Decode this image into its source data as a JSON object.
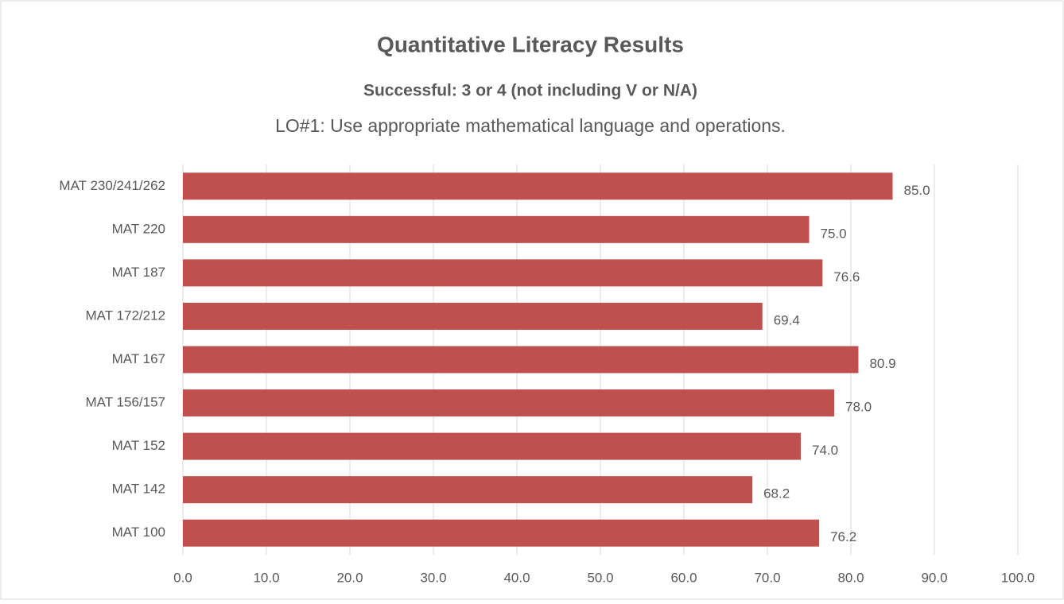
{
  "chart_data": {
    "type": "bar",
    "orientation": "horizontal",
    "title": "Quantitative Literacy Results",
    "subtitle": "Successful: 3 or 4 (not including V or N/A)",
    "caption": "LO#1:  Use appropriate mathematical language and operations.",
    "categories": [
      "MAT 230/241/262",
      "MAT 220",
      "MAT 187",
      "MAT 172/212",
      "MAT 167",
      "MAT 156/157",
      "MAT 152",
      "MAT 142",
      "MAT 100"
    ],
    "values": [
      85.0,
      75.0,
      76.6,
      69.4,
      80.9,
      78.0,
      74.0,
      68.2,
      76.2
    ],
    "value_labels": [
      "85.0",
      "75.0",
      "76.6",
      "69.4",
      "80.9",
      "78.0",
      "74.0",
      "68.2",
      "76.2"
    ],
    "color": "#c0504d",
    "xlim": [
      0,
      100
    ],
    "xticks": [
      {
        "value": 0,
        "label": "0.0"
      },
      {
        "value": 10,
        "label": "10.0"
      },
      {
        "value": 20,
        "label": "20.0"
      },
      {
        "value": 30,
        "label": "30.0"
      },
      {
        "value": 40,
        "label": "40.0"
      },
      {
        "value": 50,
        "label": "50.0"
      },
      {
        "value": 60,
        "label": "60.0"
      },
      {
        "value": 70,
        "label": "70.0"
      },
      {
        "value": 80,
        "label": "80.0"
      },
      {
        "value": 90,
        "label": "90.0"
      },
      {
        "value": 100,
        "label": "100.0"
      }
    ],
    "grid": true
  }
}
